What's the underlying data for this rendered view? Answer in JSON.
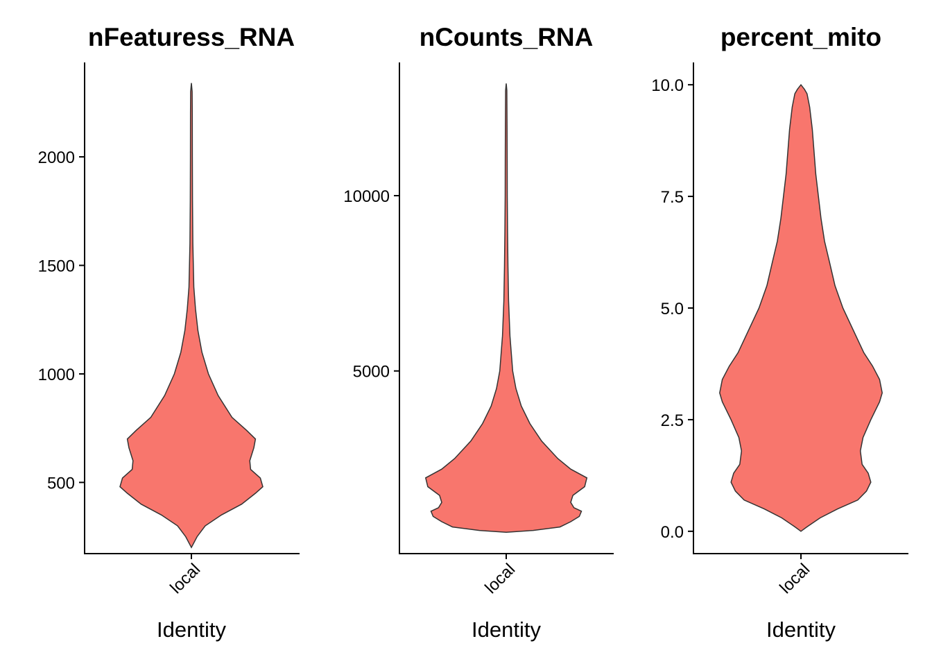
{
  "fill_color": "#F8766D",
  "chart_data": [
    {
      "type": "violin",
      "title": "nFeaturess_RNA",
      "xlabel": "Identity",
      "ylabel": "",
      "categories": [
        "local"
      ],
      "ylim": [
        172,
        2435
      ],
      "yticks": [
        500,
        1000,
        1500,
        2000
      ],
      "ytick_labels": [
        "500",
        "1000",
        "1500",
        "2000"
      ],
      "grid": false,
      "density": [
        [
          200,
          0.0
        ],
        [
          250,
          0.07
        ],
        [
          300,
          0.17
        ],
        [
          350,
          0.37
        ],
        [
          400,
          0.62
        ],
        [
          450,
          0.79
        ],
        [
          480,
          0.88
        ],
        [
          520,
          0.85
        ],
        [
          560,
          0.73
        ],
        [
          600,
          0.72
        ],
        [
          660,
          0.77
        ],
        [
          700,
          0.79
        ],
        [
          740,
          0.68
        ],
        [
          800,
          0.5
        ],
        [
          900,
          0.33
        ],
        [
          1000,
          0.21
        ],
        [
          1100,
          0.13
        ],
        [
          1200,
          0.08
        ],
        [
          1300,
          0.05
        ],
        [
          1400,
          0.03
        ],
        [
          1600,
          0.018
        ],
        [
          1800,
          0.014
        ],
        [
          2000,
          0.012
        ],
        [
          2200,
          0.011
        ],
        [
          2300,
          0.009
        ],
        [
          2340,
          0.0
        ]
      ]
    },
    {
      "type": "violin",
      "title": "nCounts_RNA",
      "xlabel": "Identity",
      "ylabel": "",
      "categories": [
        "local"
      ],
      "ylim": [
        -210,
        13800
      ],
      "yticks": [
        5000,
        10000
      ],
      "ytick_labels": [
        "5000",
        "10000"
      ],
      "grid": false,
      "density": [
        [
          400,
          0.0
        ],
        [
          450,
          0.25
        ],
        [
          550,
          0.5
        ],
        [
          700,
          0.6
        ],
        [
          850,
          0.68
        ],
        [
          1000,
          0.7
        ],
        [
          1100,
          0.63
        ],
        [
          1250,
          0.6
        ],
        [
          1450,
          0.62
        ],
        [
          1700,
          0.73
        ],
        [
          1950,
          0.75
        ],
        [
          2200,
          0.6
        ],
        [
          2500,
          0.48
        ],
        [
          3000,
          0.33
        ],
        [
          3500,
          0.22
        ],
        [
          4000,
          0.14
        ],
        [
          4500,
          0.09
        ],
        [
          5000,
          0.06
        ],
        [
          6000,
          0.035
        ],
        [
          7000,
          0.022
        ],
        [
          8000,
          0.016
        ],
        [
          9000,
          0.012
        ],
        [
          10000,
          0.01
        ],
        [
          11000,
          0.009
        ],
        [
          12000,
          0.008
        ],
        [
          13000,
          0.006
        ],
        [
          13200,
          0.0
        ]
      ]
    },
    {
      "type": "violin",
      "title": "percent_mito",
      "xlabel": "Identity",
      "ylabel": "",
      "categories": [
        "local"
      ],
      "ylim": [
        -0.5,
        10.5
      ],
      "yticks": [
        0.0,
        2.5,
        5.0,
        7.5,
        10.0
      ],
      "ytick_labels": [
        "0.0",
        "2.5",
        "5.0",
        "7.5",
        "10.0"
      ],
      "grid": false,
      "density": [
        [
          0.0,
          0.0
        ],
        [
          0.1,
          0.07
        ],
        [
          0.3,
          0.22
        ],
        [
          0.5,
          0.42
        ],
        [
          0.7,
          0.65
        ],
        [
          0.9,
          0.75
        ],
        [
          1.1,
          0.8
        ],
        [
          1.3,
          0.77
        ],
        [
          1.5,
          0.7
        ],
        [
          1.8,
          0.68
        ],
        [
          2.1,
          0.71
        ],
        [
          2.5,
          0.8
        ],
        [
          2.9,
          0.9
        ],
        [
          3.1,
          0.93
        ],
        [
          3.4,
          0.9
        ],
        [
          3.7,
          0.82
        ],
        [
          4.0,
          0.72
        ],
        [
          4.5,
          0.6
        ],
        [
          5.0,
          0.48
        ],
        [
          5.5,
          0.39
        ],
        [
          6.0,
          0.33
        ],
        [
          6.5,
          0.27
        ],
        [
          7.0,
          0.23
        ],
        [
          7.5,
          0.2
        ],
        [
          8.0,
          0.17
        ],
        [
          8.5,
          0.15
        ],
        [
          9.0,
          0.13
        ],
        [
          9.5,
          0.1
        ],
        [
          9.8,
          0.07
        ],
        [
          9.9,
          0.04
        ],
        [
          10.0,
          0.0
        ]
      ]
    }
  ]
}
